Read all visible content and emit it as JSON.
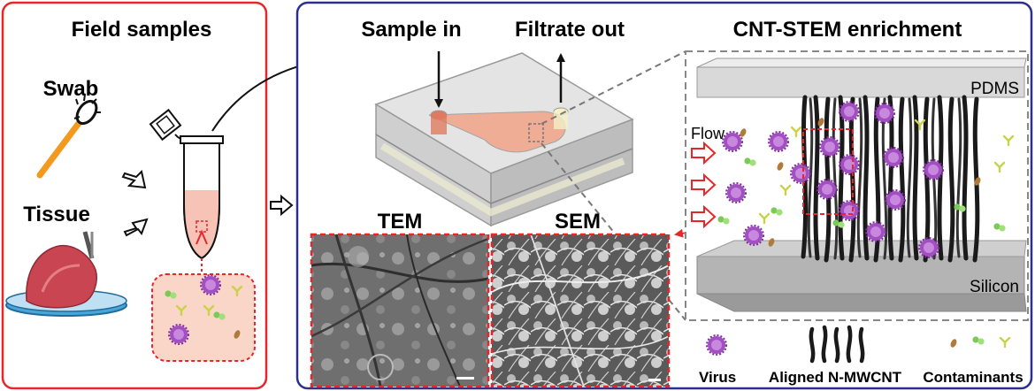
{
  "panels": {
    "field": {
      "title": "Field samples",
      "swab": "Swab",
      "tissue": "Tissue"
    },
    "device": {
      "sample_in": "Sample in",
      "filtrate_out": "Filtrate out",
      "tem": "TEM",
      "sem": "SEM"
    },
    "enrichment": {
      "title": "CNT-STEM enrichment",
      "pdms": "PDMS",
      "flow": "Flow",
      "silicon": "Silicon"
    }
  },
  "legend": {
    "virus": "Virus",
    "cnt": "Aligned N-MWCNT",
    "contaminants": "Contaminants"
  },
  "colors": {
    "field_border": "#e8262a",
    "device_border": "#2b2f8f",
    "flow_arrow": "#e8262a",
    "virus": "#a24fc2",
    "cnt": "#1a1a1a",
    "contaminant_green": "#7cc957",
    "contaminant_brown": "#b07a3a",
    "contaminant_yellow": "#c9d24a",
    "swab_stick": "#f39a1e",
    "tissue": "#c94552",
    "sample_liquid": "#f6c3b6"
  }
}
